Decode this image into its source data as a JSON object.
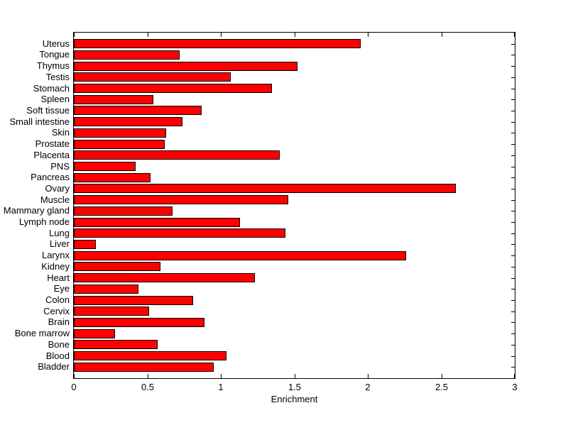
{
  "chart_data": {
    "type": "bar",
    "orientation": "horizontal",
    "title": "",
    "xlabel": "Enrichment",
    "ylabel": "",
    "xlim": [
      0,
      3
    ],
    "xticks": [
      0,
      0.5,
      1,
      1.5,
      2,
      2.5,
      3
    ],
    "xtick_labels": [
      "0",
      "0.5",
      "1",
      "1.5",
      "2",
      "2.5",
      "3"
    ],
    "grid": false,
    "legend": null,
    "bar_color": "#ff0000",
    "bar_edge_color": "#000000",
    "frame_color": "#000000",
    "background_color": "#ffffff",
    "categories_order": "top-to-bottom",
    "categories": [
      "Uterus",
      "Tongue",
      "Thymus",
      "Testis",
      "Stomach",
      "Spleen",
      "Soft tissue",
      "Small intestine",
      "Skin",
      "Prostate",
      "Placenta",
      "PNS",
      "Pancreas",
      "Ovary",
      "Muscle",
      "Mammary gland",
      "Lymph node",
      "Lung",
      "Liver",
      "Larynx",
      "Kidney",
      "Heart",
      "Eye",
      "Colon",
      "Cervix",
      "Brain",
      "Bone marrow",
      "Bone",
      "Blood",
      "Bladder"
    ],
    "values": [
      1.95,
      0.72,
      1.52,
      1.07,
      1.35,
      0.54,
      0.87,
      0.74,
      0.63,
      0.62,
      1.4,
      0.42,
      0.52,
      2.6,
      1.46,
      0.67,
      1.13,
      1.44,
      0.15,
      2.26,
      0.59,
      1.23,
      0.44,
      0.81,
      0.51,
      0.89,
      0.28,
      0.57,
      1.04,
      0.95
    ]
  }
}
